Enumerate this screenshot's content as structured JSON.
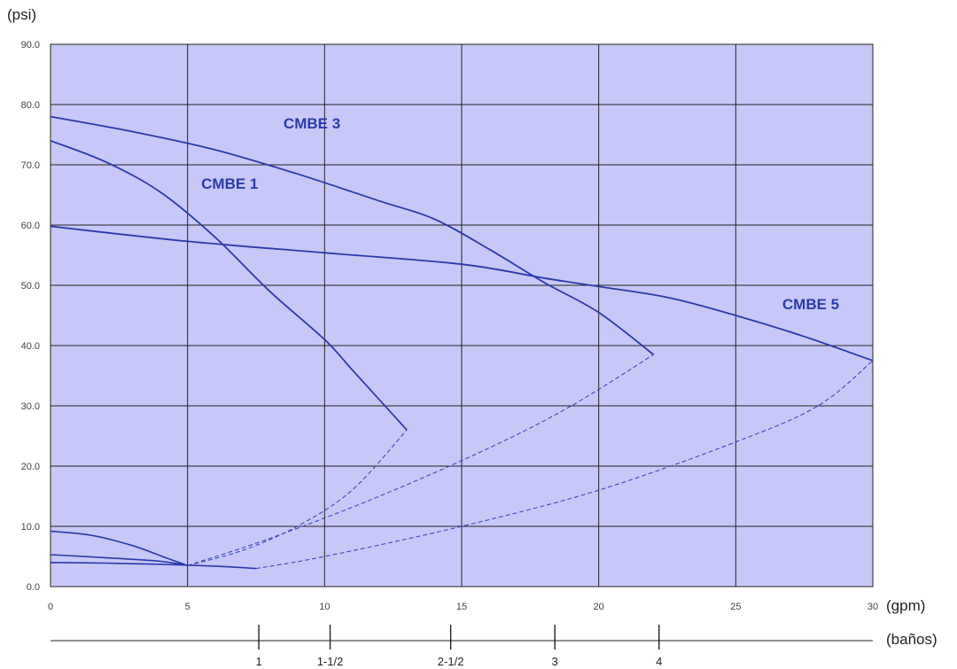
{
  "chart_data": {
    "type": "line",
    "y_unit": "(psi)",
    "x_unit": "(gpm)",
    "secondary_x_unit": "(baños)",
    "xlim": [
      0,
      30
    ],
    "ylim": [
      0,
      90
    ],
    "x_ticks": [
      0,
      5,
      10,
      15,
      20,
      25,
      30
    ],
    "y_ticks": [
      "0.0",
      "10.0",
      "20.0",
      "30.0",
      "40.0",
      "50.0",
      "60.0",
      "70.0",
      "80.0",
      "90.0"
    ],
    "grid": true,
    "colors": {
      "plot_background": "#c8c8f8",
      "grid": "#222222",
      "curve": "#2b3aa8",
      "dashed_curve": "#3a4ab8",
      "series_label": "#2b3aa8"
    },
    "secondary_axis": {
      "ticks": [
        {
          "gpm": 7.6,
          "label": "1"
        },
        {
          "gpm": 10.2,
          "label": "1-1/2"
        },
        {
          "gpm": 14.6,
          "label": "2-1/2"
        },
        {
          "gpm": 18.4,
          "label": "3"
        },
        {
          "gpm": 22.2,
          "label": "4"
        }
      ]
    },
    "series": [
      {
        "name": "CMBE 1",
        "label_position": {
          "x": 5.5,
          "y": 66
        },
        "values": [
          [
            0,
            74
          ],
          [
            2,
            70.5
          ],
          [
            4,
            65.5
          ],
          [
            6,
            58
          ],
          [
            8,
            49
          ],
          [
            10,
            41
          ],
          [
            11,
            36
          ],
          [
            12,
            31
          ],
          [
            13,
            26
          ]
        ]
      },
      {
        "name": "CMBE 3",
        "label_position": {
          "x": 8.5,
          "y": 76
        },
        "values": [
          [
            0,
            78
          ],
          [
            3,
            75.5
          ],
          [
            6,
            72.5
          ],
          [
            9,
            68.5
          ],
          [
            12,
            64
          ],
          [
            14,
            61
          ],
          [
            16,
            56
          ],
          [
            18,
            50.5
          ],
          [
            20,
            45.5
          ],
          [
            22,
            38.5
          ]
        ]
      },
      {
        "name": "CMBE 5",
        "label_position": {
          "x": 26.7,
          "y": 46
        },
        "values": [
          [
            0,
            59.8
          ],
          [
            5,
            57.3
          ],
          [
            10,
            55.4
          ],
          [
            15,
            53.5
          ],
          [
            18,
            51.2
          ],
          [
            20,
            49.8
          ],
          [
            22.5,
            48
          ],
          [
            25,
            45
          ],
          [
            27.5,
            41.5
          ],
          [
            30,
            37.5
          ]
        ]
      }
    ],
    "dashed_curves": [
      {
        "values": [
          [
            5,
            3.5
          ],
          [
            7,
            6
          ],
          [
            9,
            10
          ],
          [
            11,
            16
          ],
          [
            13,
            26
          ]
        ]
      },
      {
        "values": [
          [
            5,
            3.5
          ],
          [
            8,
            8
          ],
          [
            12,
            15
          ],
          [
            16,
            23
          ],
          [
            19,
            30
          ],
          [
            22,
            38.5
          ]
        ]
      },
      {
        "values": [
          [
            7.5,
            3
          ],
          [
            10,
            5
          ],
          [
            15,
            10
          ],
          [
            20,
            16
          ],
          [
            25,
            24
          ],
          [
            28,
            30
          ],
          [
            30,
            37.5
          ]
        ]
      }
    ],
    "low_curves": [
      {
        "values": [
          [
            0,
            9.2
          ],
          [
            1.5,
            8.5
          ],
          [
            3,
            6.8
          ],
          [
            4.2,
            4.8
          ],
          [
            5,
            3.5
          ]
        ]
      },
      {
        "values": [
          [
            0,
            5.3
          ],
          [
            2,
            4.8
          ],
          [
            4,
            4.2
          ],
          [
            5,
            3.5
          ]
        ]
      },
      {
        "values": [
          [
            0,
            4
          ],
          [
            2,
            3.9
          ],
          [
            4,
            3.7
          ],
          [
            6,
            3.4
          ],
          [
            7.5,
            3
          ]
        ]
      }
    ]
  }
}
